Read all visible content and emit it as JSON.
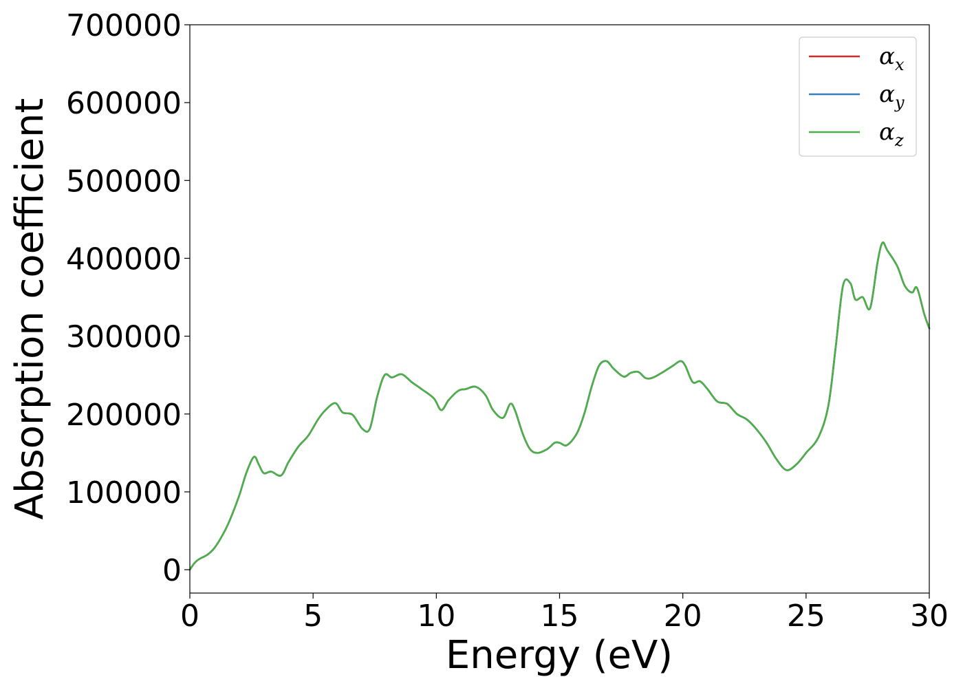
{
  "chart_data": {
    "type": "line",
    "xlabel": "Energy (eV)",
    "ylabel": "Absorption coefficient",
    "xlim": [
      0,
      30
    ],
    "ylim": [
      -30000,
      700000
    ],
    "xticks": [
      "0",
      "5",
      "10",
      "15",
      "20",
      "25",
      "30"
    ],
    "yticks": [
      "0",
      "100000",
      "200000",
      "300000",
      "400000",
      "500000",
      "600000",
      "700000"
    ],
    "grid": false,
    "legend_position": "top-right",
    "x": [
      0,
      0.2,
      0.4,
      0.7,
      1.0,
      1.3,
      1.6,
      2.0,
      2.3,
      2.6,
      2.8,
      3.0,
      3.3,
      3.7,
      4.0,
      4.4,
      4.8,
      5.2,
      5.5,
      5.9,
      6.2,
      6.6,
      7.0,
      7.3,
      7.6,
      7.9,
      8.2,
      8.6,
      9.0,
      9.4,
      9.9,
      10.2,
      10.5,
      10.9,
      11.2,
      11.6,
      12.0,
      12.3,
      12.7,
      13.0,
      13.2,
      13.5,
      13.8,
      14.1,
      14.5,
      14.8,
      15.0,
      15.3,
      15.7,
      16.0,
      16.3,
      16.6,
      16.9,
      17.2,
      17.6,
      17.9,
      18.2,
      18.5,
      18.8,
      19.2,
      19.6,
      19.9,
      20.1,
      20.4,
      20.7,
      21.0,
      21.4,
      21.8,
      22.2,
      22.6,
      23.0,
      23.4,
      23.8,
      24.2,
      24.6,
      25.0,
      25.5,
      25.9,
      26.2,
      26.5,
      26.8,
      27.0,
      27.3,
      27.6,
      27.9,
      28.1,
      28.3,
      28.7,
      29.0,
      29.3,
      29.5,
      29.8,
      30.0
    ],
    "series": [
      {
        "name": "α_x",
        "symbol": "α",
        "subscript": "x",
        "color": "#d62728",
        "values": [
          0,
          9000,
          14000,
          19000,
          28000,
          43000,
          62000,
          95000,
          125000,
          145000,
          135000,
          124000,
          126000,
          121000,
          138000,
          158000,
          172000,
          193000,
          205000,
          214000,
          202000,
          199000,
          181000,
          181000,
          222000,
          250000,
          247000,
          251000,
          241000,
          232000,
          220000,
          205000,
          218000,
          230000,
          232000,
          235000,
          224000,
          205000,
          195000,
          213000,
          204000,
          175000,
          155000,
          150000,
          155000,
          163000,
          163000,
          160000,
          175000,
          200000,
          235000,
          262000,
          268000,
          258000,
          248000,
          253000,
          254000,
          246000,
          247000,
          254000,
          262000,
          268000,
          262000,
          241000,
          242000,
          232000,
          216000,
          213000,
          200000,
          193000,
          180000,
          163000,
          142000,
          128000,
          135000,
          150000,
          170000,
          210000,
          285000,
          365000,
          368000,
          347000,
          350000,
          336000,
          395000,
          420000,
          410000,
          390000,
          365000,
          356000,
          362000,
          328000,
          310000
        ]
      },
      {
        "name": "α_y",
        "symbol": "α",
        "subscript": "y",
        "color": "#377eb8",
        "values": [
          0,
          9000,
          14000,
          19000,
          28000,
          43000,
          62000,
          95000,
          125000,
          145000,
          135000,
          124000,
          126000,
          121000,
          138000,
          158000,
          172000,
          193000,
          205000,
          214000,
          202000,
          199000,
          181000,
          181000,
          222000,
          250000,
          247000,
          251000,
          241000,
          232000,
          220000,
          205000,
          218000,
          230000,
          232000,
          235000,
          224000,
          205000,
          195000,
          213000,
          204000,
          175000,
          155000,
          150000,
          155000,
          163000,
          163000,
          160000,
          175000,
          200000,
          235000,
          262000,
          268000,
          258000,
          248000,
          253000,
          254000,
          246000,
          247000,
          254000,
          262000,
          268000,
          262000,
          241000,
          242000,
          232000,
          216000,
          213000,
          200000,
          193000,
          180000,
          163000,
          142000,
          128000,
          135000,
          150000,
          170000,
          210000,
          285000,
          365000,
          368000,
          347000,
          350000,
          336000,
          395000,
          420000,
          410000,
          390000,
          365000,
          356000,
          362000,
          328000,
          310000
        ]
      },
      {
        "name": "α_z",
        "symbol": "α",
        "subscript": "z",
        "color": "#4daf4a",
        "values": [
          0,
          9000,
          14000,
          19000,
          28000,
          43000,
          62000,
          95000,
          125000,
          145000,
          135000,
          124000,
          126000,
          121000,
          138000,
          158000,
          172000,
          193000,
          205000,
          214000,
          202000,
          199000,
          181000,
          181000,
          222000,
          250000,
          247000,
          251000,
          241000,
          232000,
          220000,
          205000,
          218000,
          230000,
          232000,
          235000,
          224000,
          205000,
          195000,
          213000,
          204000,
          175000,
          155000,
          150000,
          155000,
          163000,
          163000,
          160000,
          175000,
          200000,
          235000,
          262000,
          268000,
          258000,
          248000,
          253000,
          254000,
          246000,
          247000,
          254000,
          262000,
          268000,
          262000,
          241000,
          242000,
          232000,
          216000,
          213000,
          200000,
          193000,
          180000,
          163000,
          142000,
          128000,
          135000,
          150000,
          170000,
          210000,
          285000,
          365000,
          368000,
          347000,
          350000,
          336000,
          395000,
          420000,
          410000,
          390000,
          365000,
          356000,
          362000,
          328000,
          310000
        ]
      }
    ]
  }
}
